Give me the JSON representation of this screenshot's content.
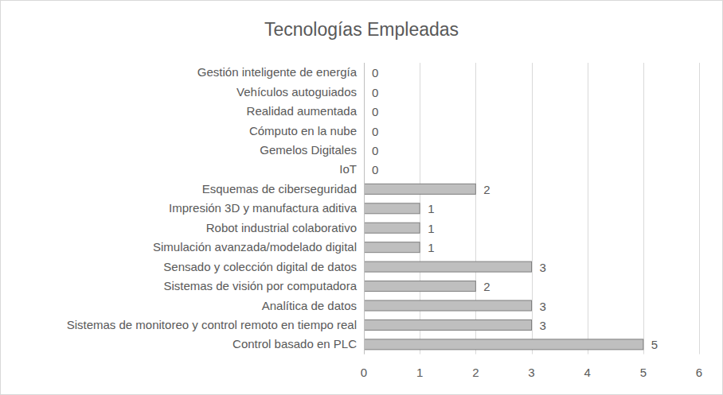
{
  "chart_data": {
    "type": "bar",
    "title": "Tecnologías Empleadas",
    "orientation": "horizontal",
    "categories": [
      "Gestión inteligente de energía",
      "Vehículos autoguiados",
      "Realidad aumentada",
      "Cómputo en la nube",
      "Gemelos Digitales",
      "IoT",
      "Esquemas de ciberseguridad",
      "Impresión 3D y manufactura aditiva",
      "Robot industrial colaborativo",
      "Simulación avanzada/modelado digital",
      "Sensado y colección digital de datos",
      "Sistemas de visión por computadora",
      "Analítica de datos",
      "Sistemas de monitoreo y control remoto en tiempo real",
      "Control basado en PLC"
    ],
    "values": [
      0,
      0,
      0,
      0,
      0,
      0,
      2,
      1,
      1,
      1,
      3,
      2,
      3,
      3,
      5
    ],
    "color": "#bfbfbf",
    "xlim": [
      0,
      6
    ],
    "xticks": [
      0,
      1,
      2,
      3,
      4,
      5,
      6
    ],
    "grid": true,
    "data_labels": true
  }
}
